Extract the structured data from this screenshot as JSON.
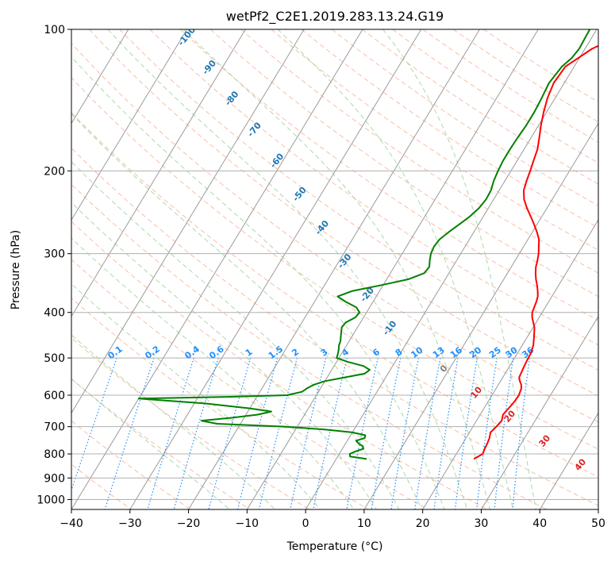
{
  "chart_data": {
    "type": "line",
    "title": "wetPf2_C2E1.2019.283.13.24.G19",
    "xlabel": "Temperature (°C)",
    "ylabel": "Pressure (hPa)",
    "xlim": [
      -40,
      50
    ],
    "ylim": [
      1050,
      100
    ],
    "y_scale": "log",
    "x_ticks": [
      "−40",
      "−30",
      "−20",
      "−10",
      "0",
      "10",
      "20",
      "30",
      "40",
      "50"
    ],
    "x_tick_values": [
      -40,
      -30,
      -20,
      -10,
      0,
      10,
      20,
      30,
      40,
      50
    ],
    "y_ticks": [
      "100",
      "200",
      "300",
      "400",
      "500",
      "600",
      "700",
      "800",
      "900",
      "1000"
    ],
    "y_tick_values": [
      100,
      200,
      300,
      400,
      500,
      600,
      700,
      800,
      900,
      1000
    ],
    "grid": true,
    "colors": {
      "temperature": "#ff0000",
      "dewpoint": "#008000",
      "isotherm": "#9a9a9a",
      "dry_adiabat": "#f7a887",
      "moist_adiabat": "#9fd19f",
      "mixing_ratio": "#1e90ff",
      "dry_adiabat_label": "#d62728",
      "moist_adiabat_label": "#1f77b4",
      "zero_label": "#7f7f7f"
    },
    "series": [
      {
        "role": "temperature",
        "color": "#ff0000",
        "points": [
          [
            100,
            6.4
          ],
          [
            110,
            1.2
          ],
          [
            120,
            -1.5
          ],
          [
            130,
            -1.8
          ],
          [
            140,
            -1.3
          ],
          [
            150,
            -0.5
          ],
          [
            160,
            0.4
          ],
          [
            170,
            1.4
          ],
          [
            180,
            2.3
          ],
          [
            190,
            2.8
          ],
          [
            200,
            3.3
          ],
          [
            210,
            3.7
          ],
          [
            220,
            4.2
          ],
          [
            230,
            5.2
          ],
          [
            240,
            6.6
          ],
          [
            250,
            8.1
          ],
          [
            260,
            9.5
          ],
          [
            270,
            10.8
          ],
          [
            280,
            11.9
          ],
          [
            290,
            12.6
          ],
          [
            300,
            13.3
          ],
          [
            310,
            13.8
          ],
          [
            320,
            14.2
          ],
          [
            330,
            14.8
          ],
          [
            340,
            15.5
          ],
          [
            350,
            16.3
          ],
          [
            360,
            17.0
          ],
          [
            370,
            17.6
          ],
          [
            380,
            17.9
          ],
          [
            390,
            18.1
          ],
          [
            400,
            18.3
          ],
          [
            410,
            18.8
          ],
          [
            420,
            19.5
          ],
          [
            430,
            20.2
          ],
          [
            450,
            21.1
          ],
          [
            470,
            21.9
          ],
          [
            490,
            22.3
          ],
          [
            510,
            22.4
          ],
          [
            530,
            22.6
          ],
          [
            550,
            22.8
          ],
          [
            560,
            23.3
          ],
          [
            570,
            23.9
          ],
          [
            580,
            24.3
          ],
          [
            600,
            24.6
          ],
          [
            620,
            24.5
          ],
          [
            640,
            24.2
          ],
          [
            660,
            23.9
          ],
          [
            680,
            24.3
          ],
          [
            700,
            24.0
          ],
          [
            720,
            23.6
          ],
          [
            740,
            24.0
          ],
          [
            760,
            24.2
          ],
          [
            780,
            24.3
          ],
          [
            800,
            24.5
          ],
          [
            810,
            24.0
          ],
          [
            820,
            23.5
          ]
        ]
      },
      {
        "role": "dewpoint",
        "color": "#008000",
        "points": [
          [
            100,
            -1.2
          ],
          [
            110,
            -1.0
          ],
          [
            115,
            -1.3
          ],
          [
            120,
            -2.1
          ],
          [
            130,
            -2.6
          ],
          [
            140,
            -2.3
          ],
          [
            150,
            -2.1
          ],
          [
            160,
            -2.1
          ],
          [
            170,
            -2.3
          ],
          [
            180,
            -2.4
          ],
          [
            190,
            -2.4
          ],
          [
            200,
            -2.2
          ],
          [
            210,
            -1.9
          ],
          [
            220,
            -1.4
          ],
          [
            230,
            -1.3
          ],
          [
            240,
            -1.6
          ],
          [
            250,
            -2.3
          ],
          [
            260,
            -3.3
          ],
          [
            270,
            -4.3
          ],
          [
            280,
            -5.1
          ],
          [
            290,
            -5.3
          ],
          [
            300,
            -5.1
          ],
          [
            310,
            -4.6
          ],
          [
            320,
            -4.0
          ],
          [
            330,
            -4.2
          ],
          [
            340,
            -6.3
          ],
          [
            350,
            -10.3
          ],
          [
            360,
            -14.6
          ],
          [
            370,
            -16.6
          ],
          [
            380,
            -14.6
          ],
          [
            390,
            -12.3
          ],
          [
            400,
            -11.2
          ],
          [
            410,
            -11.4
          ],
          [
            420,
            -12.5
          ],
          [
            430,
            -12.7
          ],
          [
            440,
            -12.3
          ],
          [
            450,
            -11.9
          ],
          [
            460,
            -11.5
          ],
          [
            470,
            -11.3
          ],
          [
            480,
            -10.9
          ],
          [
            490,
            -10.6
          ],
          [
            500,
            -10.4
          ],
          [
            510,
            -8.0
          ],
          [
            520,
            -5.0
          ],
          [
            530,
            -3.5
          ],
          [
            540,
            -4.0
          ],
          [
            550,
            -7.0
          ],
          [
            560,
            -10.0
          ],
          [
            570,
            -11.5
          ],
          [
            580,
            -12.3
          ],
          [
            590,
            -12.8
          ],
          [
            600,
            -15.0
          ],
          [
            605,
            -25.0
          ],
          [
            610,
            -40.0
          ],
          [
            615,
            -36.0
          ],
          [
            625,
            -28.0
          ],
          [
            640,
            -20.0
          ],
          [
            650,
            -16.0
          ],
          [
            660,
            -18.0
          ],
          [
            670,
            -22.0
          ],
          [
            680,
            -27.0
          ],
          [
            690,
            -24.0
          ],
          [
            700,
            -12.0
          ],
          [
            710,
            -5.0
          ],
          [
            720,
            0.0
          ],
          [
            730,
            2.5
          ],
          [
            740,
            2.7
          ],
          [
            750,
            1.5
          ],
          [
            760,
            2.2
          ],
          [
            770,
            3.2
          ],
          [
            780,
            3.6
          ],
          [
            790,
            2.5
          ],
          [
            800,
            1.8
          ],
          [
            810,
            2.1
          ],
          [
            820,
            5.2
          ]
        ]
      }
    ],
    "mixing_ratio_labels": [
      "0.1",
      "0.2",
      "0.4",
      "0.6",
      "1",
      "1.5",
      "2",
      "3",
      "4",
      "6",
      "8",
      "10",
      "13",
      "16",
      "20",
      "25",
      "30",
      "36"
    ],
    "mixing_ratio_values": [
      0.1,
      0.2,
      0.4,
      0.6,
      1,
      1.5,
      2,
      3,
      4,
      6,
      8,
      10,
      13,
      16,
      20,
      25,
      30,
      36
    ],
    "moist_adiabat_labels": [
      "-100",
      "-90",
      "-80",
      "-70",
      "-60",
      "-50",
      "-40",
      "-30",
      "-20",
      "-10",
      "0"
    ],
    "moist_adiabat_values": [
      -100,
      -90,
      -80,
      -70,
      -60,
      -50,
      -40,
      -30,
      -20,
      -10,
      0
    ],
    "dry_adiabat_labels": [
      "10",
      "20",
      "30",
      "40"
    ],
    "dry_adiabat_values": [
      10,
      20,
      30,
      40
    ]
  }
}
